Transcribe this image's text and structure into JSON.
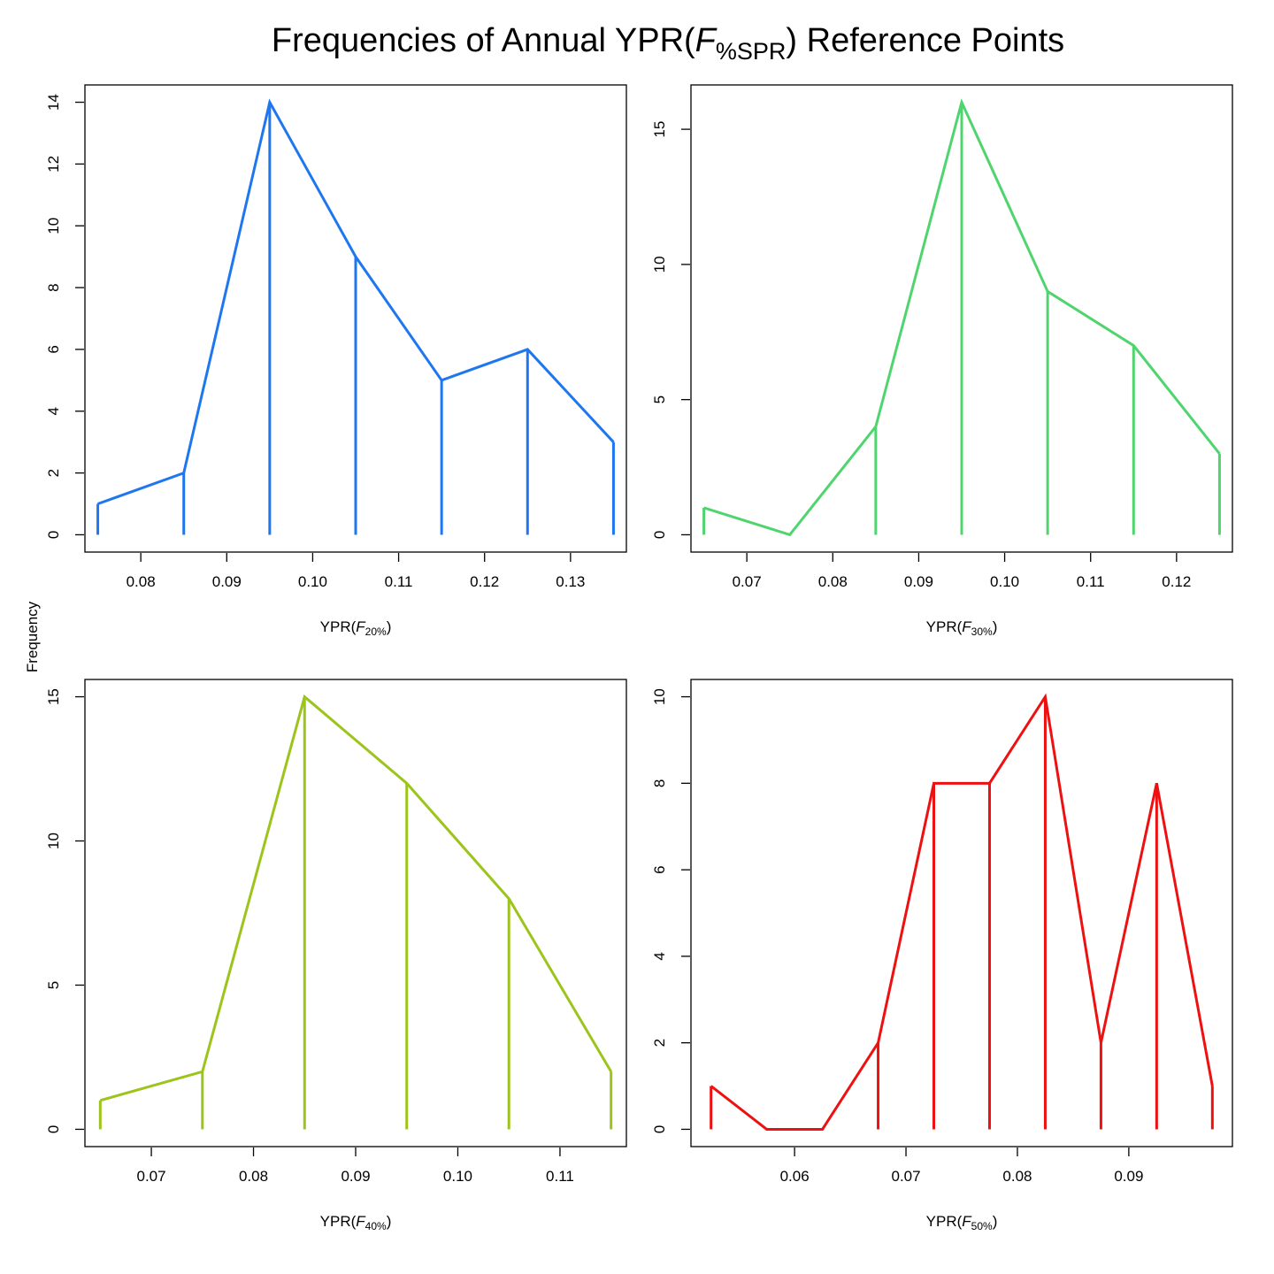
{
  "title": {
    "main": "Frequencies of Annual YPR(",
    "italic": "F",
    "subscript": "%SPR",
    "tail": ") Reference Points"
  },
  "shared_ylabel": "Frequency",
  "chart_data": [
    {
      "type": "line",
      "id": "f20",
      "color": "#1f77f0",
      "xlabel": {
        "prefix": "YPR(",
        "italic": "F",
        "subscript": "20%",
        "suffix": ")"
      },
      "x": [
        0.075,
        0.085,
        0.095,
        0.105,
        0.115,
        0.125,
        0.135
      ],
      "values": [
        1,
        2,
        14,
        9,
        5,
        6,
        3
      ],
      "xlim": [
        0.0735,
        0.1365
      ],
      "ylim": [
        -0.56,
        14.56
      ],
      "xticks": [
        0.08,
        0.09,
        0.1,
        0.11,
        0.12,
        0.13
      ],
      "xtick_labels": [
        "0.08",
        "0.09",
        "0.10",
        "0.11",
        "0.12",
        "0.13"
      ],
      "yticks": [
        0,
        2,
        4,
        6,
        8,
        10,
        12,
        14
      ],
      "ytick_labels": [
        "0",
        "2",
        "4",
        "6",
        "8",
        "10",
        "12",
        "14"
      ]
    },
    {
      "type": "line",
      "id": "f30",
      "color": "#50d46e",
      "xlabel": {
        "prefix": "YPR(",
        "italic": "F",
        "subscript": "30%",
        "suffix": ")"
      },
      "x": [
        0.065,
        0.075,
        0.085,
        0.095,
        0.105,
        0.115,
        0.125
      ],
      "values": [
        1,
        0,
        4,
        16,
        9,
        7,
        3
      ],
      "xlim": [
        0.0635,
        0.1265
      ],
      "ylim": [
        -0.64,
        16.64
      ],
      "xticks": [
        0.07,
        0.08,
        0.09,
        0.1,
        0.11,
        0.12
      ],
      "xtick_labels": [
        "0.07",
        "0.08",
        "0.09",
        "0.10",
        "0.11",
        "0.12"
      ],
      "yticks": [
        0,
        5,
        10,
        15
      ],
      "ytick_labels": [
        "0",
        "5",
        "10",
        "15"
      ]
    },
    {
      "type": "line",
      "id": "f40",
      "color": "#9cc41a",
      "xlabel": {
        "prefix": "YPR(",
        "italic": "F",
        "subscript": "40%",
        "suffix": ")"
      },
      "x": [
        0.065,
        0.075,
        0.085,
        0.095,
        0.105,
        0.115
      ],
      "values": [
        1,
        2,
        15,
        12,
        8,
        2
      ],
      "xlim": [
        0.0635,
        0.1165
      ],
      "ylim": [
        -0.6,
        15.6
      ],
      "xticks": [
        0.07,
        0.08,
        0.09,
        0.1,
        0.11
      ],
      "xtick_labels": [
        "0.07",
        "0.08",
        "0.09",
        "0.10",
        "0.11"
      ],
      "yticks": [
        0,
        5,
        10,
        15
      ],
      "ytick_labels": [
        "0",
        "5",
        "10",
        "15"
      ]
    },
    {
      "type": "line",
      "id": "f50",
      "color": "#ee1111",
      "xlabel": {
        "prefix": "YPR(",
        "italic": "F",
        "subscript": "50%",
        "suffix": ")"
      },
      "x": [
        0.0525,
        0.0575,
        0.0625,
        0.0675,
        0.0725,
        0.0775,
        0.0825,
        0.0875,
        0.0925,
        0.0975
      ],
      "values": [
        1,
        0,
        0,
        2,
        8,
        8,
        10,
        2,
        8,
        1
      ],
      "xlim": [
        0.0507,
        0.0993
      ],
      "ylim": [
        -0.4,
        10.4
      ],
      "xticks": [
        0.06,
        0.07,
        0.08,
        0.09
      ],
      "xtick_labels": [
        "0.06",
        "0.07",
        "0.08",
        "0.09"
      ],
      "yticks": [
        0,
        2,
        4,
        6,
        8,
        10
      ],
      "ytick_labels": [
        "0",
        "2",
        "4",
        "6",
        "8",
        "10"
      ]
    }
  ]
}
